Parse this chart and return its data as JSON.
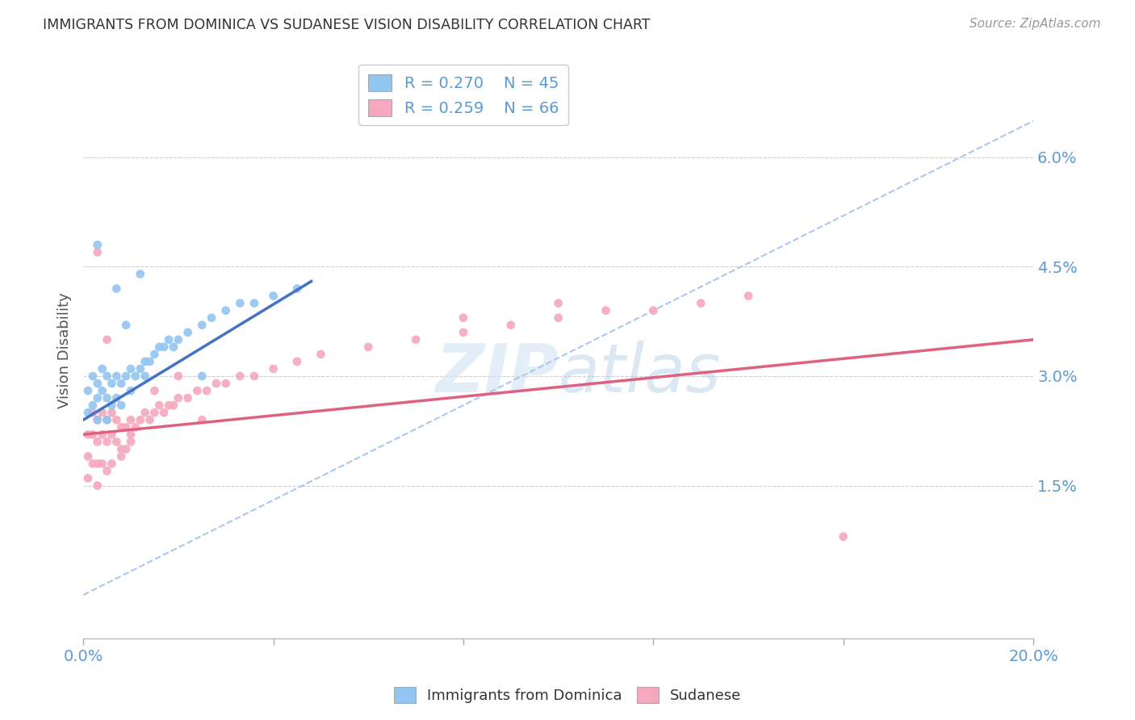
{
  "title": "IMMIGRANTS FROM DOMINICA VS SUDANESE VISION DISABILITY CORRELATION CHART",
  "source": "Source: ZipAtlas.com",
  "ylabel": "Vision Disability",
  "xlim": [
    0.0,
    0.2
  ],
  "ylim": [
    -0.006,
    0.073
  ],
  "yticks": [
    0.015,
    0.03,
    0.045,
    0.06
  ],
  "ytick_labels": [
    "1.5%",
    "3.0%",
    "4.5%",
    "6.0%"
  ],
  "xticks": [
    0.0,
    0.04,
    0.08,
    0.12,
    0.16,
    0.2
  ],
  "blue_label": "Immigrants from Dominica",
  "pink_label": "Sudanese",
  "blue_r": "R = 0.270",
  "blue_n": "N = 45",
  "pink_r": "R = 0.259",
  "pink_n": "N = 66",
  "blue_color": "#92C5F0",
  "pink_color": "#F5A8BE",
  "blue_line_color": "#4472C4",
  "pink_line_color": "#E06080",
  "dashed_color": "#A8C8F0",
  "background": "#ffffff",
  "blue_x": [
    0.001,
    0.001,
    0.002,
    0.002,
    0.003,
    0.003,
    0.003,
    0.004,
    0.004,
    0.005,
    0.005,
    0.005,
    0.006,
    0.006,
    0.007,
    0.007,
    0.008,
    0.008,
    0.009,
    0.01,
    0.01,
    0.011,
    0.012,
    0.013,
    0.013,
    0.014,
    0.015,
    0.016,
    0.017,
    0.018,
    0.019,
    0.02,
    0.022,
    0.025,
    0.027,
    0.03,
    0.033,
    0.036,
    0.04,
    0.045,
    0.003,
    0.007,
    0.009,
    0.012,
    0.025
  ],
  "blue_y": [
    0.028,
    0.025,
    0.03,
    0.026,
    0.029,
    0.027,
    0.024,
    0.031,
    0.028,
    0.03,
    0.027,
    0.024,
    0.029,
    0.026,
    0.03,
    0.027,
    0.029,
    0.026,
    0.03,
    0.031,
    0.028,
    0.03,
    0.031,
    0.032,
    0.03,
    0.032,
    0.033,
    0.034,
    0.034,
    0.035,
    0.034,
    0.035,
    0.036,
    0.037,
    0.038,
    0.039,
    0.04,
    0.04,
    0.041,
    0.042,
    0.048,
    0.042,
    0.037,
    0.044,
    0.03
  ],
  "pink_x": [
    0.001,
    0.001,
    0.001,
    0.002,
    0.002,
    0.002,
    0.003,
    0.003,
    0.003,
    0.003,
    0.004,
    0.004,
    0.004,
    0.005,
    0.005,
    0.005,
    0.006,
    0.006,
    0.006,
    0.007,
    0.007,
    0.008,
    0.008,
    0.009,
    0.009,
    0.01,
    0.01,
    0.011,
    0.012,
    0.013,
    0.014,
    0.015,
    0.016,
    0.017,
    0.018,
    0.019,
    0.02,
    0.022,
    0.024,
    0.026,
    0.028,
    0.03,
    0.033,
    0.036,
    0.04,
    0.045,
    0.05,
    0.06,
    0.07,
    0.08,
    0.09,
    0.1,
    0.11,
    0.12,
    0.13,
    0.14,
    0.16,
    0.003,
    0.005,
    0.008,
    0.01,
    0.015,
    0.02,
    0.025,
    0.1,
    0.08
  ],
  "pink_y": [
    0.022,
    0.019,
    0.016,
    0.025,
    0.022,
    0.018,
    0.024,
    0.021,
    0.018,
    0.015,
    0.025,
    0.022,
    0.018,
    0.024,
    0.021,
    0.017,
    0.025,
    0.022,
    0.018,
    0.024,
    0.021,
    0.023,
    0.02,
    0.023,
    0.02,
    0.024,
    0.021,
    0.023,
    0.024,
    0.025,
    0.024,
    0.025,
    0.026,
    0.025,
    0.026,
    0.026,
    0.027,
    0.027,
    0.028,
    0.028,
    0.029,
    0.029,
    0.03,
    0.03,
    0.031,
    0.032,
    0.033,
    0.034,
    0.035,
    0.036,
    0.037,
    0.038,
    0.039,
    0.039,
    0.04,
    0.041,
    0.008,
    0.047,
    0.035,
    0.019,
    0.022,
    0.028,
    0.03,
    0.024,
    0.04,
    0.038
  ],
  "blue_line_x0": 0.0,
  "blue_line_y0": 0.024,
  "blue_line_x1": 0.048,
  "blue_line_y1": 0.043,
  "pink_line_x0": 0.0,
  "pink_line_y0": 0.022,
  "pink_line_x1": 0.2,
  "pink_line_y1": 0.035,
  "dash_line_x0": 0.0,
  "dash_line_y0": 0.0,
  "dash_line_x1": 0.2,
  "dash_line_y1": 0.065
}
